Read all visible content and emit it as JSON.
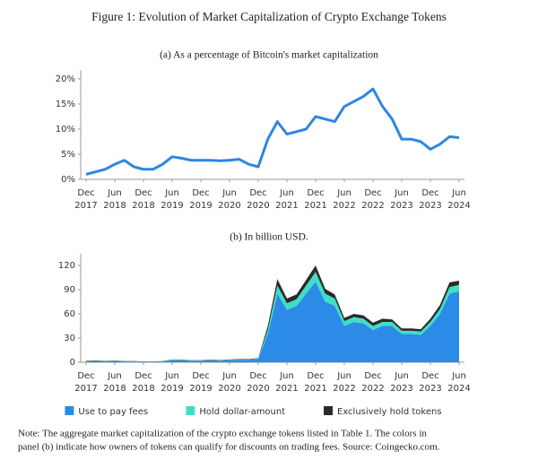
{
  "title": "Figure 1: Evolution of Market Capitalization of Crypto Exchange Tokens",
  "note_lines": [
    "Note: The aggregate market capitalization of the crypto exchange tokens listed in Table 1. The colors in",
    "panel (b) indicate how owners of tokens can qualify for discounts on trading fees. Source: Coingecko.com."
  ],
  "chart_data": [
    {
      "type": "line",
      "title": "(a) As a percentage of Bitcoin's market capitalization",
      "x": [
        "2017-12",
        "2018-02",
        "2018-04",
        "2018-06",
        "2018-08",
        "2018-10",
        "2018-12",
        "2019-02",
        "2019-04",
        "2019-06",
        "2019-08",
        "2019-10",
        "2019-12",
        "2020-02",
        "2020-04",
        "2020-06",
        "2020-08",
        "2020-10",
        "2020-12",
        "2021-02",
        "2021-04",
        "2021-06",
        "2021-08",
        "2021-10",
        "2021-12",
        "2022-02",
        "2022-04",
        "2022-06",
        "2022-08",
        "2022-10",
        "2022-12",
        "2023-02",
        "2023-04",
        "2023-06",
        "2023-08",
        "2023-10",
        "2023-12",
        "2024-02",
        "2024-04",
        "2024-06"
      ],
      "series": [
        {
          "color": "#2d87e0",
          "values": [
            1.0,
            1.5,
            2.0,
            3.0,
            3.8,
            2.5,
            2.0,
            2.0,
            3.0,
            4.5,
            4.2,
            3.8,
            3.8,
            3.8,
            3.7,
            3.8,
            4.0,
            3.0,
            2.5,
            8.0,
            11.5,
            9.0,
            9.5,
            10.0,
            12.5,
            12.0,
            11.5,
            14.5,
            15.5,
            16.5,
            18.0,
            14.5,
            12.0,
            8.0,
            8.0,
            7.5,
            6.0,
            7.0,
            8.5,
            8.3
          ]
        }
      ],
      "xlim": [
        "2017-12",
        "2024-06"
      ],
      "xticks": [
        {
          "value": "2017-12",
          "label": "Dec 2017"
        },
        {
          "value": "2018-06",
          "label": "Jun 2018"
        },
        {
          "value": "2018-12",
          "label": "Dec 2018"
        },
        {
          "value": "2019-06",
          "label": "Jun 2019"
        },
        {
          "value": "2019-12",
          "label": "Dec 2019"
        },
        {
          "value": "2020-06",
          "label": "Jun 2020"
        },
        {
          "value": "2020-12",
          "label": "Dec 2020"
        },
        {
          "value": "2021-06",
          "label": "Jun 2021"
        },
        {
          "value": "2021-12",
          "label": "Dec 2021"
        },
        {
          "value": "2022-06",
          "label": "Jun 2022"
        },
        {
          "value": "2022-12",
          "label": "Dec 2022"
        },
        {
          "value": "2023-06",
          "label": "Jun 2023"
        },
        {
          "value": "2023-12",
          "label": "Dec 2023"
        },
        {
          "value": "2024-06",
          "label": "Jun 2024"
        }
      ],
      "ylim": [
        0,
        21
      ],
      "yticks": [
        {
          "value": 0,
          "label": "0%"
        },
        {
          "value": 5,
          "label": "5%"
        },
        {
          "value": 10,
          "label": "10%"
        },
        {
          "value": 15,
          "label": "15%"
        },
        {
          "value": 20,
          "label": "20%"
        }
      ],
      "grid": false
    },
    {
      "type": "stacked_area",
      "title": "(b) In billion USD.",
      "x": [
        "2017-12",
        "2018-02",
        "2018-04",
        "2018-06",
        "2018-08",
        "2018-10",
        "2018-12",
        "2019-02",
        "2019-04",
        "2019-06",
        "2019-08",
        "2019-10",
        "2019-12",
        "2020-02",
        "2020-04",
        "2020-06",
        "2020-08",
        "2020-10",
        "2020-12",
        "2021-02",
        "2021-04",
        "2021-06",
        "2021-08",
        "2021-10",
        "2021-12",
        "2022-02",
        "2022-04",
        "2022-06",
        "2022-08",
        "2022-10",
        "2022-12",
        "2023-02",
        "2023-04",
        "2023-06",
        "2023-08",
        "2023-10",
        "2023-12",
        "2024-02",
        "2024-04",
        "2024-06"
      ],
      "series": [
        {
          "name": "Use to pay fees",
          "color": "#2d8be8",
          "values": [
            1,
            1.5,
            1,
            1.5,
            1,
            1,
            0.5,
            0.5,
            1,
            2.5,
            2.5,
            2,
            2,
            2.5,
            2,
            2.5,
            3,
            3,
            4,
            35,
            85,
            65,
            70,
            85,
            100,
            75,
            70,
            45,
            50,
            48,
            40,
            45,
            45,
            35,
            35,
            34,
            45,
            60,
            85,
            88
          ]
        },
        {
          "name": "Hold dollar-amount",
          "color": "#3de0c6",
          "values": [
            0.3,
            0.3,
            0.2,
            0.3,
            0.2,
            0.2,
            0.1,
            0.1,
            0.2,
            0.5,
            0.4,
            0.3,
            0.3,
            0.5,
            0.4,
            0.5,
            0.5,
            0.5,
            0.6,
            5,
            10,
            8,
            8,
            10,
            12,
            10,
            9,
            6,
            6,
            6,
            5,
            5,
            5,
            4,
            4,
            4,
            5,
            6,
            8,
            8
          ]
        },
        {
          "name": "Exclusively hold tokens",
          "color": "#2b2b2b",
          "values": [
            0.5,
            0.5,
            0.4,
            0.4,
            0.3,
            0.3,
            0.2,
            0.2,
            0.3,
            0.5,
            0.5,
            0.4,
            0.4,
            0.5,
            0.4,
            0.5,
            0.5,
            0.5,
            0.6,
            5,
            8,
            6,
            6,
            7,
            8,
            6,
            5,
            4,
            4,
            4,
            4,
            4,
            3,
            3,
            3,
            3,
            4,
            5,
            6,
            5
          ]
        }
      ],
      "xlim": [
        "2017-12",
        "2024-06"
      ],
      "xticks": [
        {
          "value": "2017-12",
          "label": "Dec 2017"
        },
        {
          "value": "2018-06",
          "label": "Jun 2018"
        },
        {
          "value": "2018-12",
          "label": "Dec 2018"
        },
        {
          "value": "2019-06",
          "label": "Jun 2019"
        },
        {
          "value": "2019-12",
          "label": "Dec 2019"
        },
        {
          "value": "2020-06",
          "label": "Jun 2020"
        },
        {
          "value": "2020-12",
          "label": "Dec 2020"
        },
        {
          "value": "2021-06",
          "label": "Jun 2021"
        },
        {
          "value": "2021-12",
          "label": "Dec 2021"
        },
        {
          "value": "2022-06",
          "label": "Jun 2022"
        },
        {
          "value": "2022-12",
          "label": "Dec 2022"
        },
        {
          "value": "2023-06",
          "label": "Jun 2023"
        },
        {
          "value": "2023-12",
          "label": "Dec 2023"
        },
        {
          "value": "2024-06",
          "label": "Jun 2024"
        }
      ],
      "ylim": [
        0,
        130
      ],
      "yticks": [
        0,
        30,
        60,
        90,
        120
      ],
      "grid": false,
      "legend": "bottom"
    }
  ]
}
